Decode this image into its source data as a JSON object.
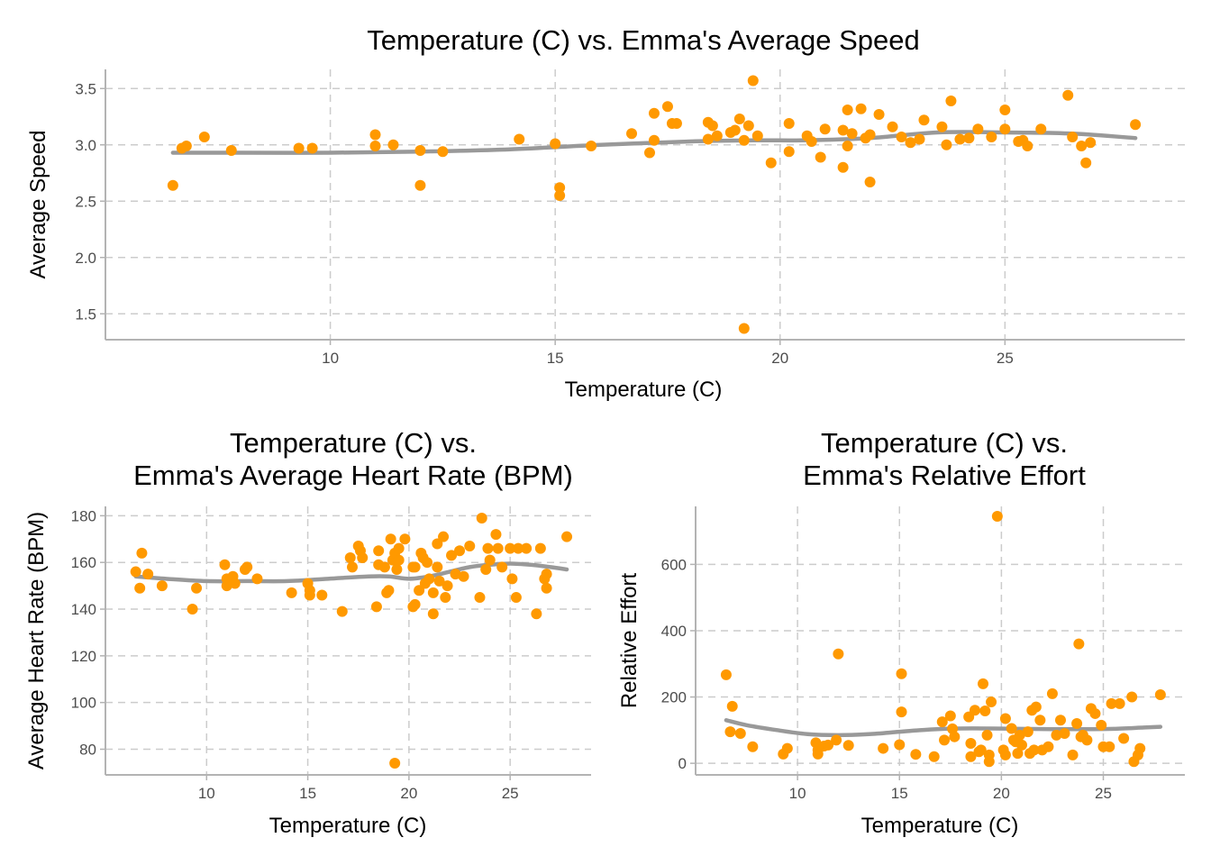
{
  "colors": {
    "point": "#FF9900",
    "smooth": "#999999",
    "grid": "#cccccc",
    "axis": "#b3b3b3"
  },
  "chart_data": [
    {
      "id": "speed",
      "type": "scatter",
      "title": "Temperature (C) vs. Emma's Average Speed",
      "xlabel": "Temperature (C)",
      "ylabel": "Average Speed",
      "xlim": [
        5.0,
        29.0
      ],
      "ylim": [
        1.27,
        3.67
      ],
      "xticks": [
        10,
        15,
        20,
        25
      ],
      "yticks": [
        1.5,
        2.0,
        2.5,
        3.0,
        3.5
      ],
      "ytick_labels": [
        "1.5",
        "2.0",
        "2.5",
        "3.0",
        "3.5"
      ],
      "grid": true,
      "points": [
        [
          6.5,
          2.64
        ],
        [
          6.7,
          2.97
        ],
        [
          6.8,
          2.99
        ],
        [
          7.2,
          3.07
        ],
        [
          7.8,
          2.95
        ],
        [
          9.3,
          2.97
        ],
        [
          9.6,
          2.97
        ],
        [
          11.0,
          2.99
        ],
        [
          11.0,
          3.09
        ],
        [
          11.4,
          3.0
        ],
        [
          12.0,
          2.95
        ],
        [
          12.0,
          2.64
        ],
        [
          12.5,
          2.94
        ],
        [
          14.2,
          3.05
        ],
        [
          15.0,
          3.01
        ],
        [
          15.1,
          2.55
        ],
        [
          15.1,
          2.62
        ],
        [
          15.8,
          2.99
        ],
        [
          16.7,
          3.1
        ],
        [
          17.1,
          2.93
        ],
        [
          17.2,
          3.28
        ],
        [
          17.2,
          3.04
        ],
        [
          17.5,
          3.34
        ],
        [
          17.6,
          3.19
        ],
        [
          17.7,
          3.19
        ],
        [
          18.4,
          3.2
        ],
        [
          18.4,
          3.05
        ],
        [
          18.5,
          3.17
        ],
        [
          18.6,
          3.08
        ],
        [
          18.9,
          3.11
        ],
        [
          19.0,
          3.13
        ],
        [
          19.1,
          3.23
        ],
        [
          19.2,
          3.04
        ],
        [
          19.3,
          3.17
        ],
        [
          19.2,
          1.37
        ],
        [
          19.4,
          3.57
        ],
        [
          19.5,
          3.08
        ],
        [
          19.8,
          2.84
        ],
        [
          20.2,
          2.94
        ],
        [
          20.2,
          3.19
        ],
        [
          20.6,
          3.08
        ],
        [
          20.7,
          3.03
        ],
        [
          20.9,
          2.89
        ],
        [
          21.0,
          3.14
        ],
        [
          21.4,
          2.8
        ],
        [
          21.4,
          3.13
        ],
        [
          21.5,
          2.99
        ],
        [
          21.5,
          3.31
        ],
        [
          21.6,
          3.1
        ],
        [
          21.8,
          3.32
        ],
        [
          21.9,
          3.06
        ],
        [
          22.0,
          2.67
        ],
        [
          22.0,
          3.09
        ],
        [
          22.2,
          3.27
        ],
        [
          22.5,
          3.16
        ],
        [
          22.7,
          3.07
        ],
        [
          22.9,
          3.02
        ],
        [
          23.1,
          3.05
        ],
        [
          23.2,
          3.22
        ],
        [
          23.6,
          3.16
        ],
        [
          23.7,
          3.0
        ],
        [
          23.8,
          3.39
        ],
        [
          24.0,
          3.05
        ],
        [
          24.2,
          3.06
        ],
        [
          24.4,
          3.14
        ],
        [
          24.7,
          3.07
        ],
        [
          25.0,
          3.14
        ],
        [
          25.0,
          3.31
        ],
        [
          25.3,
          3.03
        ],
        [
          25.4,
          3.04
        ],
        [
          25.5,
          2.99
        ],
        [
          25.8,
          3.14
        ],
        [
          26.4,
          3.44
        ],
        [
          26.5,
          3.07
        ],
        [
          26.7,
          2.99
        ],
        [
          26.8,
          2.84
        ],
        [
          26.9,
          3.02
        ],
        [
          27.9,
          3.18
        ]
      ],
      "smooth": [
        [
          6.5,
          2.93
        ],
        [
          8,
          2.93
        ],
        [
          10,
          2.93
        ],
        [
          12,
          2.94
        ],
        [
          14,
          2.96
        ],
        [
          16,
          3.0
        ],
        [
          18,
          3.03
        ],
        [
          19.5,
          3.04
        ],
        [
          20.5,
          3.04
        ],
        [
          22,
          3.06
        ],
        [
          23.5,
          3.11
        ],
        [
          25,
          3.11
        ],
        [
          26.5,
          3.1
        ],
        [
          27.9,
          3.06
        ]
      ]
    },
    {
      "id": "hr",
      "type": "scatter",
      "title": "Temperature (C) vs.",
      "title_line2": "Emma's Average Heart Rate (BPM)",
      "xlabel": "Temperature (C)",
      "ylabel": "Average Heart Rate (BPM)",
      "xlim": [
        5.0,
        29.0
      ],
      "ylim": [
        69.0,
        184.0
      ],
      "xticks": [
        10,
        15,
        20,
        25
      ],
      "yticks": [
        80,
        100,
        120,
        140,
        160,
        180
      ],
      "ytick_labels": [
        "80",
        "100",
        "120",
        "140",
        "160",
        "180"
      ],
      "grid": true,
      "points": [
        [
          6.5,
          156
        ],
        [
          6.8,
          164
        ],
        [
          6.7,
          149
        ],
        [
          7.1,
          155
        ],
        [
          7.8,
          150
        ],
        [
          9.3,
          140
        ],
        [
          9.5,
          149
        ],
        [
          10.9,
          159
        ],
        [
          11.0,
          153
        ],
        [
          11.0,
          150
        ],
        [
          11.3,
          154
        ],
        [
          11.4,
          151
        ],
        [
          11.9,
          157
        ],
        [
          12.0,
          158
        ],
        [
          12.5,
          153
        ],
        [
          14.2,
          147
        ],
        [
          15.0,
          151
        ],
        [
          15.1,
          148
        ],
        [
          15.1,
          146
        ],
        [
          15.7,
          146
        ],
        [
          16.7,
          139
        ],
        [
          17.1,
          162
        ],
        [
          17.2,
          158
        ],
        [
          17.5,
          167
        ],
        [
          17.6,
          165
        ],
        [
          17.7,
          162
        ],
        [
          18.4,
          141
        ],
        [
          18.5,
          159
        ],
        [
          18.5,
          165
        ],
        [
          18.8,
          158
        ],
        [
          18.9,
          147
        ],
        [
          19.0,
          148
        ],
        [
          19.1,
          170
        ],
        [
          19.2,
          161
        ],
        [
          19.3,
          164
        ],
        [
          19.3,
          74
        ],
        [
          19.4,
          157
        ],
        [
          19.5,
          161
        ],
        [
          19.5,
          166
        ],
        [
          19.8,
          170
        ],
        [
          20.2,
          158
        ],
        [
          20.2,
          141
        ],
        [
          20.3,
          142
        ],
        [
          20.3,
          158
        ],
        [
          20.5,
          148
        ],
        [
          20.6,
          164
        ],
        [
          20.7,
          162
        ],
        [
          20.8,
          151
        ],
        [
          20.9,
          160
        ],
        [
          21.0,
          153
        ],
        [
          21.2,
          147
        ],
        [
          21.2,
          138
        ],
        [
          21.4,
          158
        ],
        [
          21.4,
          168
        ],
        [
          21.5,
          152
        ],
        [
          21.7,
          171
        ],
        [
          21.8,
          145
        ],
        [
          21.9,
          150
        ],
        [
          22.1,
          163
        ],
        [
          22.3,
          155
        ],
        [
          22.5,
          165
        ],
        [
          22.7,
          154
        ],
        [
          23.0,
          167
        ],
        [
          23.5,
          145
        ],
        [
          23.6,
          179
        ],
        [
          23.8,
          157
        ],
        [
          23.9,
          166
        ],
        [
          24.0,
          161
        ],
        [
          24.3,
          172
        ],
        [
          24.4,
          166
        ],
        [
          24.6,
          158
        ],
        [
          25.0,
          166
        ],
        [
          25.1,
          153
        ],
        [
          25.3,
          145
        ],
        [
          25.4,
          166
        ],
        [
          25.8,
          166
        ],
        [
          26.3,
          138
        ],
        [
          26.5,
          166
        ],
        [
          26.7,
          153
        ],
        [
          26.8,
          155
        ],
        [
          26.8,
          149
        ],
        [
          27.8,
          171
        ]
      ],
      "smooth": [
        [
          6.5,
          154
        ],
        [
          8,
          153
        ],
        [
          10,
          152
        ],
        [
          12,
          152
        ],
        [
          14,
          152
        ],
        [
          16,
          153
        ],
        [
          18,
          154
        ],
        [
          19,
          154
        ],
        [
          20,
          153
        ],
        [
          21,
          154
        ],
        [
          22,
          156
        ],
        [
          23,
          158
        ],
        [
          24,
          159
        ],
        [
          25,
          159.5
        ],
        [
          26,
          159
        ],
        [
          27,
          158
        ],
        [
          27.8,
          157
        ]
      ]
    },
    {
      "id": "effort",
      "type": "scatter",
      "title": "Temperature (C) vs.",
      "title_line2": "Emma's Relative Effort",
      "xlabel": "Temperature (C)",
      "ylabel": "Relative Effort",
      "xlim": [
        5.0,
        29.0
      ],
      "ylim": [
        -35.0,
        775.0
      ],
      "xticks": [
        10,
        15,
        20,
        25
      ],
      "yticks": [
        0,
        200,
        400,
        600
      ],
      "ytick_labels": [
        "0",
        "200",
        "400",
        "600"
      ],
      "grid": true,
      "points": [
        [
          6.5,
          267
        ],
        [
          6.7,
          95
        ],
        [
          6.8,
          172
        ],
        [
          7.2,
          90
        ],
        [
          7.8,
          50
        ],
        [
          9.3,
          28
        ],
        [
          9.5,
          45
        ],
        [
          10.9,
          62
        ],
        [
          11.0,
          40
        ],
        [
          11.0,
          28
        ],
        [
          11.3,
          52
        ],
        [
          11.5,
          55
        ],
        [
          11.9,
          70
        ],
        [
          12.0,
          330
        ],
        [
          12.5,
          54
        ],
        [
          14.2,
          45
        ],
        [
          15.0,
          56
        ],
        [
          15.1,
          270
        ],
        [
          15.1,
          155
        ],
        [
          15.8,
          27
        ],
        [
          16.7,
          20
        ],
        [
          17.1,
          125
        ],
        [
          17.2,
          70
        ],
        [
          17.5,
          143
        ],
        [
          17.6,
          104
        ],
        [
          17.7,
          80
        ],
        [
          18.4,
          140
        ],
        [
          18.5,
          60
        ],
        [
          18.5,
          20
        ],
        [
          18.7,
          160
        ],
        [
          18.9,
          35
        ],
        [
          19.0,
          40
        ],
        [
          19.1,
          240
        ],
        [
          19.2,
          158
        ],
        [
          19.3,
          85
        ],
        [
          19.4,
          25
        ],
        [
          19.4,
          5
        ],
        [
          19.5,
          185
        ],
        [
          19.8,
          745
        ],
        [
          20.1,
          40
        ],
        [
          20.2,
          135
        ],
        [
          20.2,
          25
        ],
        [
          20.5,
          105
        ],
        [
          20.6,
          70
        ],
        [
          20.7,
          65
        ],
        [
          20.8,
          30
        ],
        [
          20.9,
          85
        ],
        [
          21.0,
          55
        ],
        [
          21.3,
          95
        ],
        [
          21.4,
          30
        ],
        [
          21.5,
          160
        ],
        [
          21.6,
          40
        ],
        [
          21.7,
          170
        ],
        [
          21.9,
          130
        ],
        [
          22.0,
          40
        ],
        [
          22.3,
          50
        ],
        [
          22.5,
          210
        ],
        [
          22.7,
          85
        ],
        [
          22.9,
          130
        ],
        [
          23.1,
          90
        ],
        [
          23.5,
          25
        ],
        [
          23.7,
          120
        ],
        [
          23.8,
          360
        ],
        [
          23.9,
          80
        ],
        [
          24.0,
          85
        ],
        [
          24.2,
          70
        ],
        [
          24.4,
          165
        ],
        [
          24.6,
          150
        ],
        [
          24.9,
          115
        ],
        [
          25.0,
          50
        ],
        [
          25.3,
          50
        ],
        [
          25.4,
          180
        ],
        [
          25.8,
          180
        ],
        [
          26.0,
          75
        ],
        [
          26.4,
          200
        ],
        [
          26.5,
          5
        ],
        [
          26.7,
          25
        ],
        [
          26.8,
          45
        ],
        [
          27.8,
          207
        ]
      ],
      "smooth": [
        [
          6.5,
          130
        ],
        [
          7.5,
          115
        ],
        [
          9,
          100
        ],
        [
          10.5,
          88
        ],
        [
          12,
          85
        ],
        [
          13.5,
          88
        ],
        [
          15,
          95
        ],
        [
          16.5,
          102
        ],
        [
          18,
          105
        ],
        [
          19.5,
          105
        ],
        [
          21,
          104
        ],
        [
          22.5,
          103
        ],
        [
          24,
          103
        ],
        [
          25.5,
          104
        ],
        [
          27,
          108
        ],
        [
          27.8,
          110
        ]
      ]
    }
  ]
}
